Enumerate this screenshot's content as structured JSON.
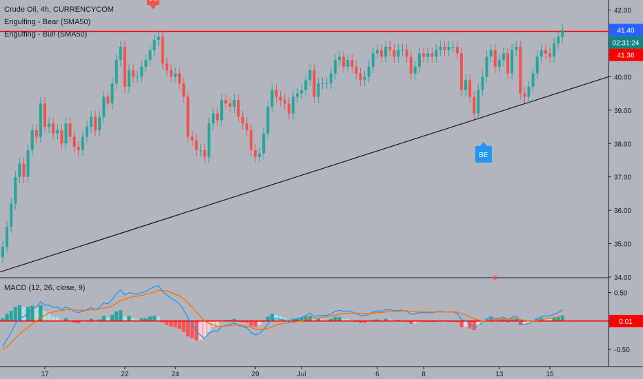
{
  "chart_data": [
    {
      "type": "candlestick",
      "title": "Crude Oil, 4h, CURRENCYCOM",
      "indicators": [
        "Engulfing - Bear (SMA50)",
        "Engulfing - Bull (SMA50)"
      ],
      "x_ticks": [
        "17",
        "22",
        "24",
        "29",
        "Jul",
        "6",
        "8",
        "13",
        "15"
      ],
      "y_ticks": [
        "42.00",
        "41.00",
        "40.00",
        "39.00",
        "38.00",
        "37.00",
        "36.00",
        "35.00",
        "34.00"
      ],
      "ylim": [
        34.0,
        42.3
      ],
      "last_price": "41.40",
      "countdown": "02:31:24",
      "resistance_price": "41.36",
      "resistance_level": 41.36,
      "trendline": [
        {
          "x": 0,
          "y": 34.15
        },
        {
          "x": 1,
          "y": 40.0
        }
      ],
      "signals": [
        {
          "label": "BE",
          "type": "bear",
          "position": 0.2517,
          "price": 41.9
        },
        {
          "label": "BE",
          "type": "bull",
          "position": 0.7947,
          "price": 38.05
        }
      ],
      "close": [
        34.9,
        35.5,
        36.2,
        37.0,
        37.4,
        37.0,
        37.8,
        38.4,
        38.2,
        39.2,
        38.5,
        38.6,
        38.3,
        38.4,
        38.0,
        38.6,
        38.2,
        37.9,
        37.8,
        38.2,
        38.5,
        38.8,
        38.4,
        38.8,
        39.4,
        39.2,
        39.8,
        40.5,
        40.9,
        39.7,
        40.2,
        40.0,
        40.0,
        40.3,
        40.5,
        40.8,
        41.1,
        41.2,
        40.4,
        40.2,
        40.0,
        40.1,
        39.8,
        39.4,
        38.2,
        38.1,
        37.8,
        37.8,
        37.6,
        38.6,
        38.9,
        38.7,
        39.3,
        39.2,
        39.1,
        39.3,
        38.8,
        38.6,
        38.4,
        37.8,
        37.6,
        37.7,
        38.3,
        39.1,
        39.6,
        39.4,
        39.3,
        39.2,
        38.9,
        39.4,
        39.5,
        39.6,
        39.9,
        40.2,
        39.4,
        39.8,
        39.8,
        39.8,
        40.1,
        40.5,
        40.6,
        40.3,
        40.5,
        40.3,
        40.1,
        39.9,
        40.0,
        40.3,
        40.7,
        40.8,
        40.6,
        40.9,
        40.8,
        40.6,
        40.8,
        40.8,
        40.6,
        40.1,
        40.3,
        40.7,
        40.6,
        40.7,
        40.6,
        40.8,
        40.9,
        40.8,
        40.9,
        40.9,
        40.7,
        39.6,
        39.9,
        39.4,
        38.9,
        39.6,
        40.0,
        40.6,
        40.8,
        40.3,
        40.5,
        40.7,
        40.1,
        40.8,
        40.9,
        39.5,
        39.4,
        39.7,
        40.1,
        40.6,
        40.8,
        40.7,
        40.6,
        41.0,
        41.2,
        41.4
      ],
      "macd": {
        "label": "MACD (12, 26, close, 9)",
        "y_ticks": [
          "0.50",
          "0.00",
          "-0.50"
        ],
        "ylim": [
          -0.8,
          0.75
        ],
        "zero_price": "0.01",
        "macd_line": [
          -0.45,
          -0.32,
          -0.2,
          -0.05,
          0.05,
          0.08,
          0.14,
          0.22,
          0.24,
          0.34,
          0.28,
          0.28,
          0.24,
          0.25,
          0.2,
          0.25,
          0.22,
          0.17,
          0.15,
          0.17,
          0.2,
          0.24,
          0.2,
          0.24,
          0.32,
          0.3,
          0.38,
          0.48,
          0.55,
          0.46,
          0.5,
          0.48,
          0.47,
          0.5,
          0.52,
          0.57,
          0.6,
          0.62,
          0.52,
          0.46,
          0.4,
          0.36,
          0.3,
          0.2,
          0.05,
          -0.05,
          -0.18,
          -0.25,
          -0.3,
          -0.22,
          -0.17,
          -0.18,
          -0.1,
          -0.07,
          -0.06,
          -0.03,
          -0.08,
          -0.1,
          -0.12,
          -0.2,
          -0.24,
          -0.22,
          -0.15,
          -0.05,
          0.03,
          0.04,
          0.03,
          0.02,
          -0.02,
          0.02,
          0.04,
          0.06,
          0.1,
          0.14,
          0.08,
          0.1,
          0.1,
          0.1,
          0.13,
          0.17,
          0.19,
          0.17,
          0.18,
          0.16,
          0.13,
          0.1,
          0.1,
          0.12,
          0.16,
          0.18,
          0.17,
          0.2,
          0.2,
          0.18,
          0.19,
          0.19,
          0.17,
          0.12,
          0.12,
          0.15,
          0.15,
          0.15,
          0.14,
          0.16,
          0.17,
          0.16,
          0.16,
          0.16,
          0.14,
          0.02,
          0.01,
          -0.05,
          -0.12,
          -0.08,
          -0.03,
          0.04,
          0.08,
          0.04,
          0.05,
          0.07,
          0.02,
          0.07,
          0.09,
          -0.04,
          -0.06,
          -0.04,
          0.0,
          0.05,
          0.08,
          0.09,
          0.09,
          0.12,
          0.15,
          0.2
        ],
        "signal_line": [
          -0.5,
          -0.45,
          -0.38,
          -0.3,
          -0.23,
          -0.17,
          -0.11,
          -0.05,
          0.0,
          0.06,
          0.1,
          0.14,
          0.16,
          0.18,
          0.18,
          0.2,
          0.2,
          0.2,
          0.19,
          0.19,
          0.19,
          0.2,
          0.2,
          0.21,
          0.23,
          0.24,
          0.27,
          0.31,
          0.36,
          0.38,
          0.41,
          0.43,
          0.44,
          0.45,
          0.47,
          0.49,
          0.51,
          0.54,
          0.54,
          0.53,
          0.5,
          0.47,
          0.44,
          0.39,
          0.32,
          0.25,
          0.16,
          0.08,
          0.0,
          -0.04,
          -0.07,
          -0.09,
          -0.09,
          -0.09,
          -0.08,
          -0.07,
          -0.07,
          -0.08,
          -0.09,
          -0.11,
          -0.14,
          -0.15,
          -0.15,
          -0.13,
          -0.1,
          -0.07,
          -0.05,
          -0.04,
          -0.03,
          -0.02,
          -0.01,
          0.0,
          0.02,
          0.05,
          0.05,
          0.06,
          0.07,
          0.08,
          0.09,
          0.1,
          0.12,
          0.13,
          0.14,
          0.14,
          0.14,
          0.13,
          0.13,
          0.13,
          0.14,
          0.15,
          0.15,
          0.16,
          0.17,
          0.17,
          0.17,
          0.18,
          0.18,
          0.17,
          0.16,
          0.16,
          0.16,
          0.16,
          0.16,
          0.16,
          0.16,
          0.16,
          0.16,
          0.16,
          0.16,
          0.13,
          0.11,
          0.08,
          0.04,
          0.02,
          0.0,
          0.01,
          0.02,
          0.03,
          0.03,
          0.04,
          0.04,
          0.04,
          0.05,
          0.03,
          0.01,
          0.0,
          0.0,
          0.01,
          0.02,
          0.04,
          0.05,
          0.06,
          0.08,
          0.1
        ]
      }
    }
  ],
  "colors": {
    "background": "#b2b5be",
    "bull": "#26a69a",
    "bear": "#ef5350",
    "axis_text": "#131722",
    "resistance": "#ff0000",
    "trendline": "#131722",
    "macd_line": "#2196f3",
    "signal_line": "#ff6d00",
    "hist_pos_strong": "#26a69a",
    "hist_pos_weak": "#b2dfdb",
    "hist_neg_strong": "#ff5252",
    "hist_neg_weak": "#ffcdd2",
    "price_tag": "#2962ff",
    "countdown_tag": "#138484",
    "resistance_tag": "#ff0000",
    "bear_signal": "#ef5350",
    "bull_signal": "#2196f3"
  }
}
